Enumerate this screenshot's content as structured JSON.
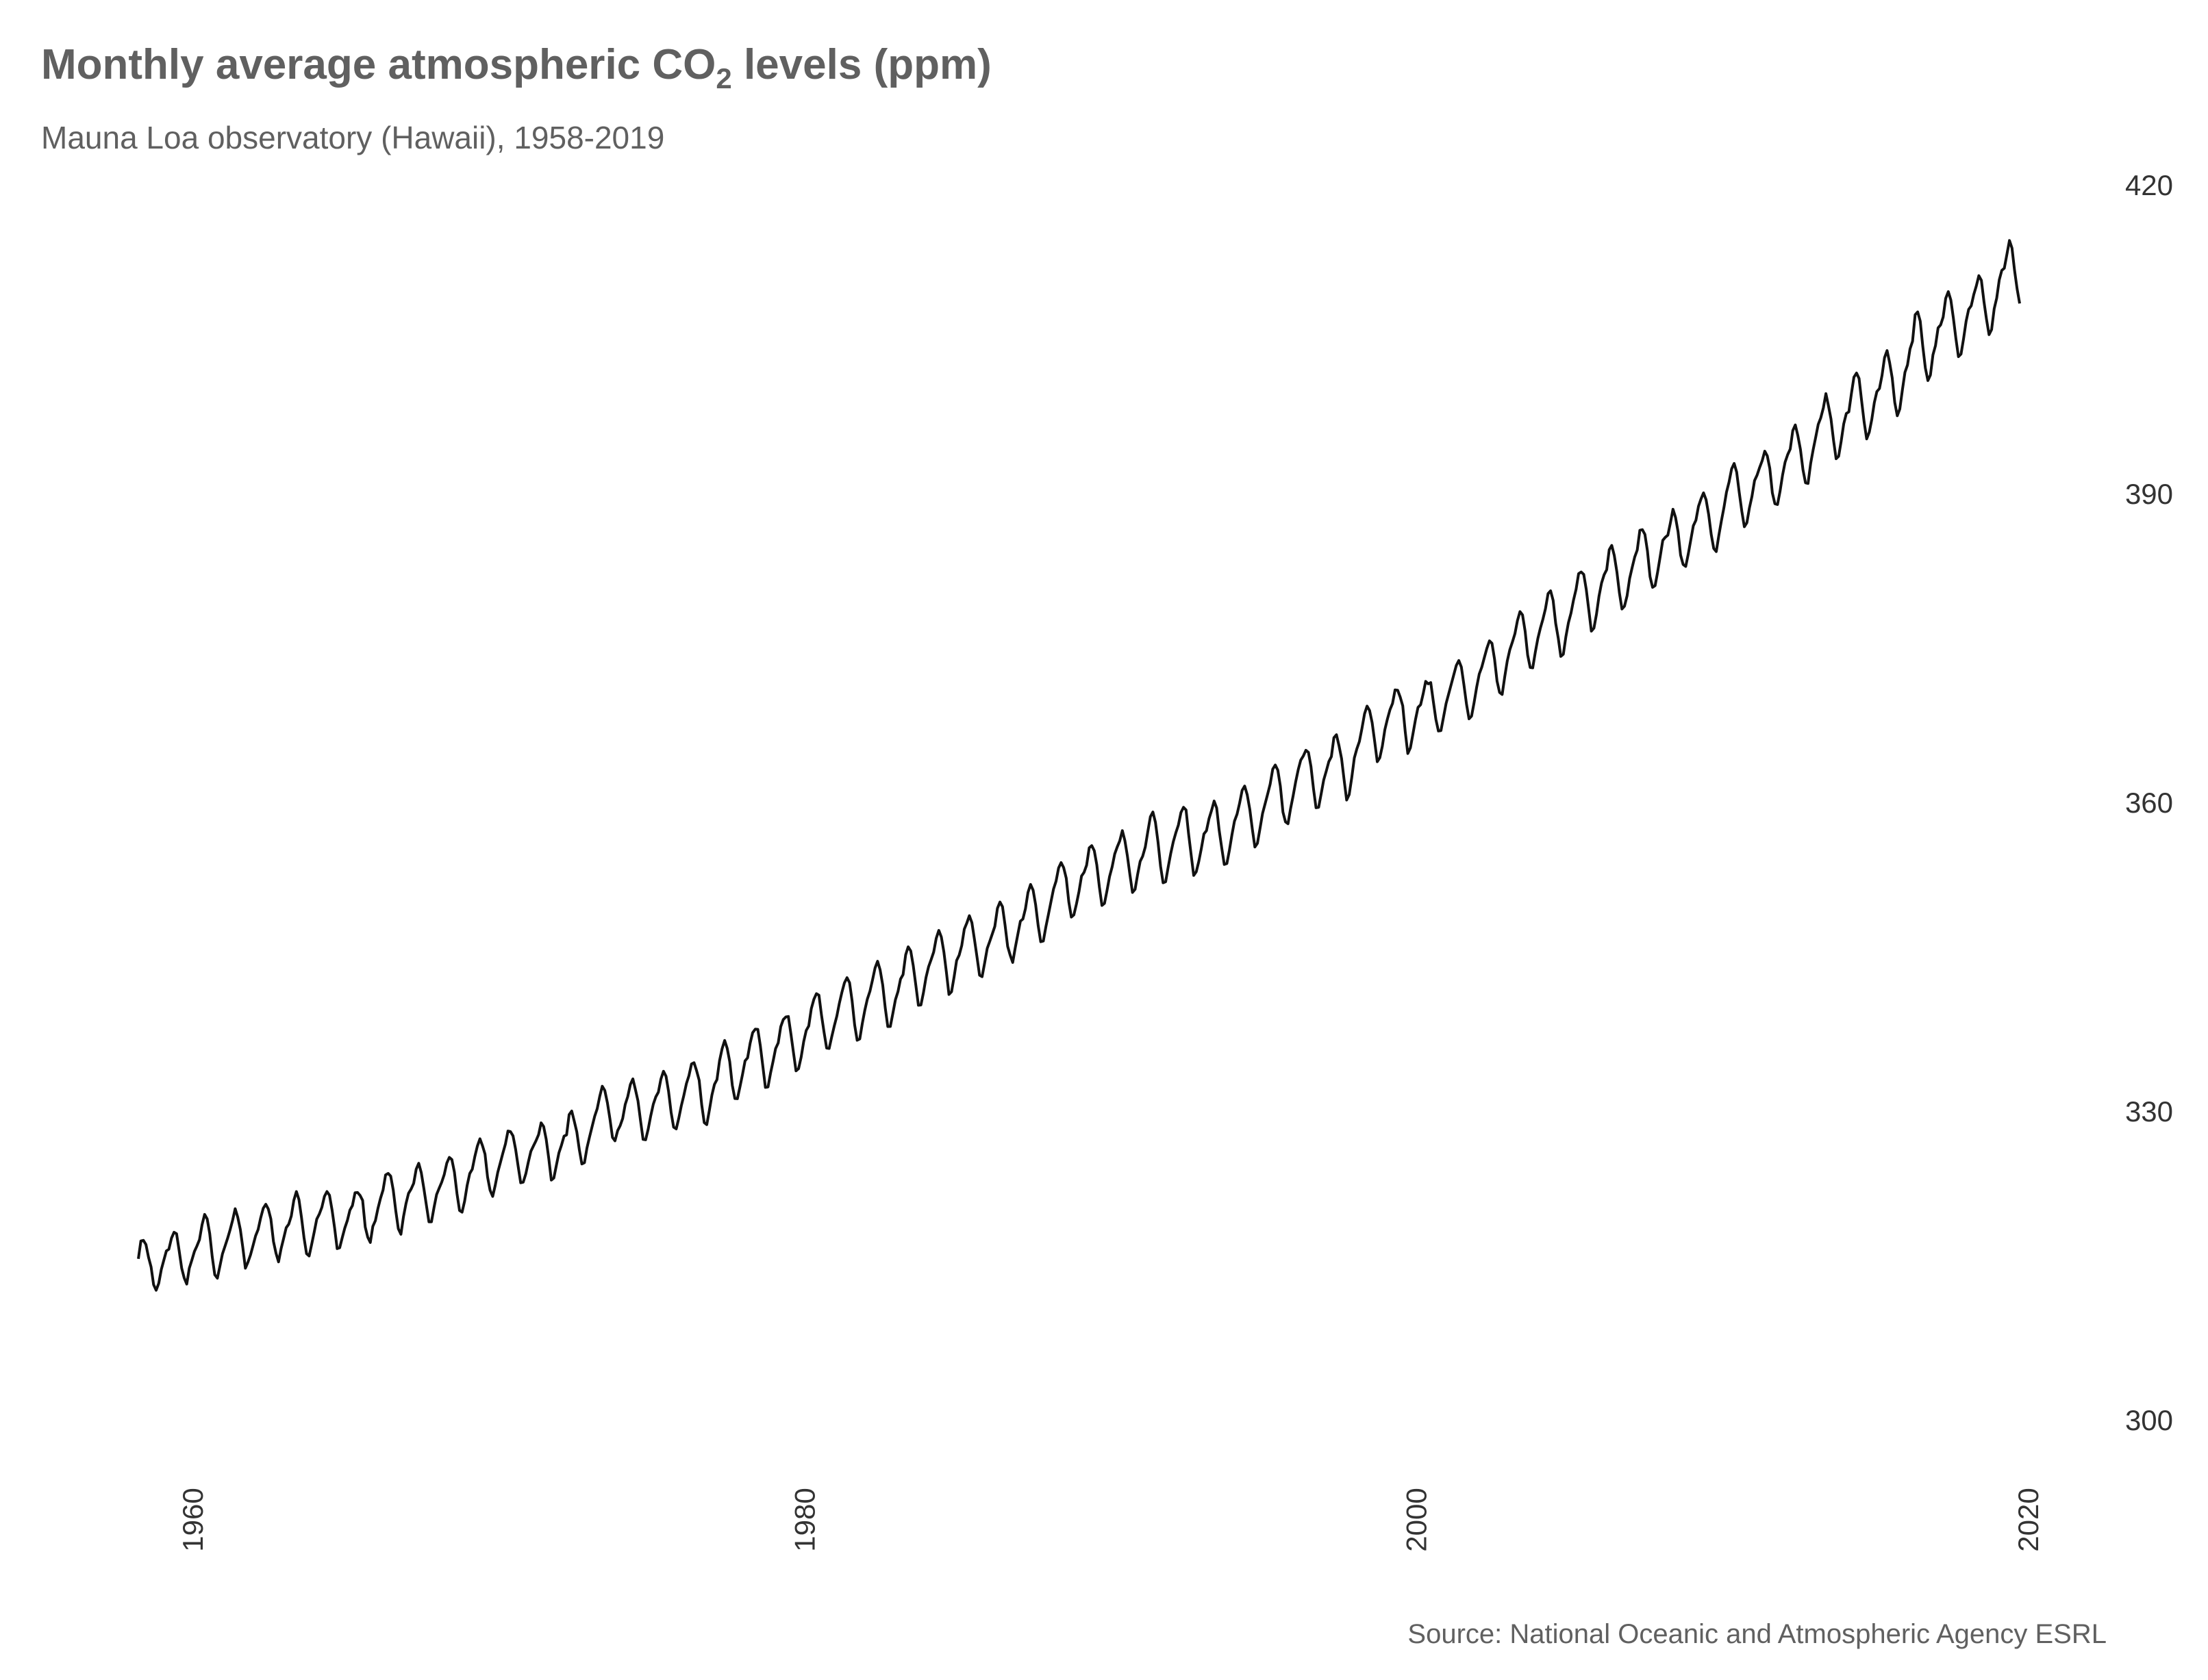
{
  "chart_data": {
    "type": "line",
    "title": {
      "prefix": "Monthly average atmospheric CO",
      "subscript": "2",
      "suffix": " levels (ppm)"
    },
    "subtitle": "Mauna Loa observatory (Hawaii), 1958-2019",
    "caption": "Source: National Oceanic and Atmospheric Agency ESRL",
    "xlabel": "",
    "ylabel": "",
    "xlim": [
      1958,
      2020
    ],
    "ylim": [
      300,
      420
    ],
    "x_ticks": [
      {
        "value": 1960,
        "label": "1960"
      },
      {
        "value": 1980,
        "label": "1980"
      },
      {
        "value": 2000,
        "label": "2000"
      },
      {
        "value": 2020,
        "label": "2020"
      }
    ],
    "y_ticks": [
      {
        "value": 300,
        "label": "300"
      },
      {
        "value": 330,
        "label": "330"
      },
      {
        "value": 360,
        "label": "360"
      },
      {
        "value": 390,
        "label": "390"
      },
      {
        "value": 420,
        "label": "420"
      }
    ],
    "y_axis_position": "right",
    "x_tick_label_rotation": "vertical",
    "grid": false,
    "legend": "none",
    "line_color": "#111111",
    "series": [
      {
        "x_start": "1958-03",
        "x_step": "1 month",
        "x_end": "2019-09",
        "values": [
          315.71,
          317.45,
          317.51,
          317.1,
          315.86,
          314.93,
          313.2,
          312.66,
          313.33,
          314.67,
          315.58,
          316.48,
          316.65,
          317.72,
          318.29,
          318.15,
          316.54,
          314.8,
          313.84,
          313.26,
          314.8,
          315.58,
          316.43,
          316.97,
          317.58,
          319.02,
          320.03,
          319.59,
          318.18,
          315.91,
          314.16,
          313.83,
          315.0,
          316.19,
          316.93,
          317.7,
          318.54,
          319.48,
          320.58,
          319.77,
          318.57,
          316.79,
          314.8,
          315.38,
          316.1,
          317.01,
          317.94,
          318.56,
          319.68,
          320.63,
          321.01,
          320.55,
          319.58,
          317.4,
          316.26,
          315.42,
          316.69,
          317.69,
          318.74,
          319.08,
          319.86,
          321.39,
          322.25,
          321.47,
          319.74,
          317.77,
          316.21,
          315.99,
          317.12,
          318.31,
          319.57,
          320.07,
          320.73,
          321.77,
          322.25,
          321.89,
          320.44,
          318.7,
          316.7,
          316.79,
          317.79,
          318.71,
          319.44,
          320.44,
          320.89,
          322.13,
          322.16,
          321.87,
          321.39,
          318.8,
          317.81,
          317.3,
          318.87,
          319.42,
          320.62,
          321.59,
          322.39,
          323.87,
          324.01,
          323.75,
          322.39,
          320.37,
          318.64,
          318.1,
          319.79,
          321.08,
          322.07,
          322.5,
          323.04,
          324.42,
          325.0,
          324.09,
          322.55,
          320.92,
          319.31,
          319.31,
          320.72,
          321.96,
          322.57,
          323.15,
          323.89,
          325.02,
          325.57,
          325.36,
          324.14,
          322.03,
          320.41,
          320.25,
          321.31,
          322.84,
          324.0,
          324.42,
          325.64,
          326.66,
          327.38,
          326.7,
          325.89,
          323.67,
          322.38,
          321.78,
          322.85,
          324.11,
          325.03,
          325.99,
          326.87,
          328.13,
          328.07,
          327.66,
          326.35,
          324.69,
          323.1,
          323.16,
          323.98,
          325.13,
          326.17,
          326.68,
          327.18,
          327.78,
          328.92,
          328.57,
          327.34,
          325.46,
          323.36,
          323.57,
          324.8,
          326.01,
          326.77,
          327.63,
          327.75,
          329.72,
          330.07,
          329.09,
          328.05,
          326.32,
          324.93,
          325.06,
          326.5,
          327.55,
          328.54,
          329.56,
          330.3,
          331.5,
          332.48,
          332.07,
          330.87,
          329.31,
          327.51,
          327.18,
          328.16,
          328.64,
          329.35,
          330.71,
          331.48,
          332.65,
          333.2,
          332.16,
          331.07,
          329.12,
          327.32,
          327.28,
          328.3,
          329.58,
          330.73,
          331.46,
          331.9,
          333.17,
          333.94,
          333.45,
          331.98,
          329.95,
          328.5,
          328.34,
          329.37,
          330.58,
          331.59,
          332.75,
          333.52,
          334.64,
          334.77,
          334.0,
          333.06,
          330.68,
          328.95,
          328.75,
          330.15,
          331.62,
          332.66,
          333.13,
          334.95,
          336.13,
          336.93,
          336.17,
          334.88,
          332.56,
          331.29,
          331.27,
          332.41,
          333.6,
          334.95,
          335.25,
          336.66,
          337.69,
          338.03,
          338.01,
          336.41,
          334.41,
          332.37,
          332.41,
          333.75,
          334.9,
          336.14,
          336.69,
          338.27,
          338.96,
          339.21,
          339.26,
          337.54,
          335.75,
          333.98,
          334.19,
          335.31,
          336.81,
          337.9,
          338.34,
          340.01,
          340.93,
          341.48,
          341.33,
          339.4,
          337.7,
          336.19,
          336.15,
          337.27,
          338.32,
          339.29,
          340.55,
          341.61,
          342.53,
          343.03,
          342.54,
          340.78,
          338.44,
          336.95,
          337.08,
          338.58,
          339.88,
          340.96,
          341.73,
          342.81,
          343.97,
          344.63,
          343.79,
          342.32,
          340.09,
          338.28,
          338.29,
          339.6,
          340.9,
          341.68,
          342.9,
          343.33,
          345.25,
          346.03,
          345.63,
          344.19,
          342.27,
          340.35,
          340.38,
          341.59,
          343.05,
          344.1,
          344.79,
          345.52,
          346.84,
          347.63,
          346.98,
          345.53,
          343.55,
          341.4,
          341.67,
          343.1,
          344.7,
          345.21,
          346.16,
          347.74,
          348.34,
          349.06,
          348.38,
          346.72,
          345.02,
          343.27,
          343.13,
          344.49,
          345.88,
          346.56,
          347.28,
          348.01,
          349.77,
          350.38,
          349.93,
          348.16,
          346.08,
          345.22,
          344.51,
          345.93,
          347.21,
          348.52,
          348.73,
          349.73,
          351.31,
          352.09,
          351.53,
          350.11,
          348.08,
          346.52,
          346.59,
          347.96,
          349.16,
          350.39,
          351.64,
          352.41,
          353.69,
          354.21,
          353.72,
          352.69,
          350.4,
          348.92,
          349.13,
          350.2,
          351.41,
          352.91,
          353.27,
          353.96,
          355.64,
          355.86,
          355.37,
          353.99,
          351.81,
          350.05,
          350.25,
          351.49,
          352.85,
          353.8,
          355.04,
          355.73,
          356.32,
          357.32,
          356.34,
          354.84,
          353.01,
          351.31,
          351.62,
          353.07,
          354.33,
          354.84,
          355.73,
          357.23,
          358.66,
          359.13,
          358.13,
          356.19,
          353.85,
          352.25,
          352.35,
          353.81,
          355.12,
          356.25,
          357.11,
          357.86,
          359.09,
          359.59,
          359.33,
          357.01,
          354.94,
          352.96,
          353.32,
          354.32,
          355.57,
          357.0,
          357.31,
          358.47,
          359.27,
          360.19,
          359.52,
          357.33,
          355.64,
          354.03,
          354.12,
          355.41,
          356.91,
          358.24,
          358.92,
          359.99,
          361.23,
          361.65,
          360.81,
          359.38,
          357.46,
          355.73,
          356.08,
          357.53,
          358.98,
          359.92,
          360.86,
          361.83,
          363.3,
          363.69,
          363.19,
          361.64,
          359.12,
          358.17,
          357.99,
          359.45,
          360.68,
          362.07,
          363.24,
          364.17,
          364.57,
          365.13,
          364.92,
          363.55,
          361.38,
          359.54,
          359.58,
          360.89,
          362.24,
          363.09,
          364.03,
          364.51,
          366.35,
          366.64,
          365.59,
          364.31,
          362.25,
          360.29,
          360.82,
          362.49,
          364.38,
          365.27,
          365.98,
          367.24,
          368.66,
          369.42,
          368.99,
          367.82,
          365.95,
          364.02,
          364.4,
          365.52,
          367.13,
          368.18,
          369.07,
          369.68,
          370.99,
          370.96,
          370.3,
          369.45,
          366.9,
          364.81,
          365.37,
          366.72,
          368.1,
          369.29,
          369.55,
          370.6,
          371.82,
          371.58,
          371.7,
          369.86,
          368.13,
          367.0,
          367.03,
          368.37,
          369.67,
          370.59,
          371.51,
          372.43,
          373.37,
          373.85,
          373.21,
          371.51,
          369.61,
          368.18,
          368.45,
          369.76,
          371.24,
          372.53,
          373.2,
          374.12,
          375.02,
          375.76,
          375.52,
          374.01,
          371.85,
          370.75,
          370.55,
          372.25,
          373.79,
          374.88,
          375.64,
          376.45,
          377.73,
          378.6,
          378.28,
          376.7,
          374.38,
          373.17,
          373.14,
          374.66,
          375.99,
          377.0,
          377.87,
          378.88,
          380.35,
          380.62,
          379.69,
          377.47,
          376.01,
          374.25,
          374.46,
          376.16,
          377.51,
          378.46,
          379.73,
          380.77,
          382.29,
          382.45,
          382.21,
          380.74,
          378.74,
          376.7,
          377.0,
          378.35,
          380.11,
          381.38,
          382.19,
          382.67,
          384.61,
          385.03,
          384.05,
          382.46,
          380.41,
          378.85,
          379.13,
          380.15,
          381.82,
          382.89,
          383.9,
          384.58,
          386.5,
          386.56,
          386.1,
          384.5,
          381.99,
          380.96,
          381.12,
          382.45,
          383.95,
          385.52,
          385.82,
          386.03,
          387.21,
          388.54,
          387.76,
          386.36,
          384.09,
          383.18,
          382.99,
          384.19,
          385.56,
          386.94,
          387.48,
          388.82,
          389.55,
          390.14,
          389.48,
          388.03,
          386.11,
          384.74,
          384.43,
          386.02,
          387.42,
          388.71,
          390.2,
          391.17,
          392.46,
          393.0,
          392.15,
          390.2,
          388.35,
          386.85,
          387.24,
          388.67,
          389.79,
          391.33,
          391.86,
          392.6,
          393.25,
          394.19,
          393.73,
          392.51,
          390.13,
          389.08,
          389.0,
          390.28,
          391.86,
          393.12,
          393.86,
          394.4,
          396.18,
          396.74,
          395.71,
          394.36,
          392.39,
          391.11,
          391.05,
          392.98,
          394.34,
          395.55,
          396.8,
          397.43,
          398.41,
          399.78,
          398.6,
          397.32,
          395.2,
          393.45,
          393.7,
          395.16,
          396.84,
          397.85,
          398.01,
          399.77,
          401.38,
          401.78,
          401.25,
          399.1,
          397.03,
          395.38,
          396.03,
          397.28,
          398.91,
          399.98,
          400.28,
          401.54,
          403.28,
          403.96,
          402.8,
          401.31,
          398.93,
          397.63,
          398.29,
          400.16,
          401.85,
          402.56,
          404.12,
          404.87,
          407.45,
          407.72,
          406.83,
          404.41,
          402.27,
          401.05,
          401.59,
          403.55,
          404.45,
          406.17,
          406.46,
          407.22,
          409.04,
          409.69,
          408.88,
          407.12,
          405.13,
          403.37,
          403.63,
          405.12,
          406.81,
          407.96,
          408.32,
          409.41,
          410.24,
          411.24,
          410.79,
          408.71,
          406.99,
          405.51,
          406.0,
          408.02,
          409.07,
          410.83,
          411.75,
          411.97,
          413.32,
          414.66,
          413.92,
          411.77,
          409.95,
          408.54
        ]
      }
    ]
  }
}
